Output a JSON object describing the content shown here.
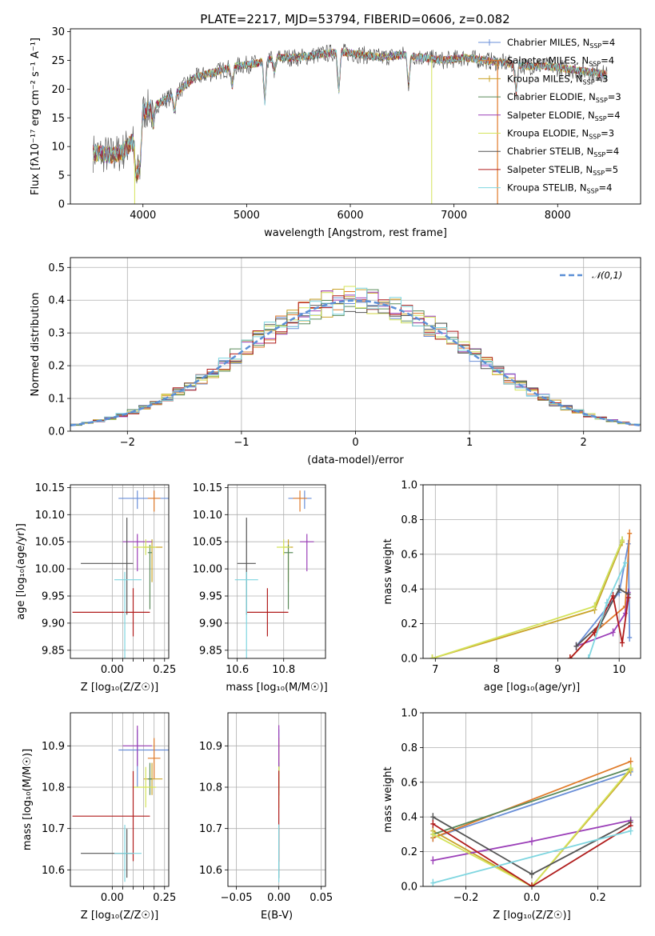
{
  "figure": {
    "title": "PLATE=2217, MJD=53794, FIBERID=0606, z=0.082"
  },
  "colors": {
    "Chabrier MILES": "#6a8fd8",
    "Salpeter MILES": "#e07b2a",
    "Kroupa MILES": "#c9a227",
    "Chabrier ELODIE": "#5a8a5a",
    "Salpeter ELODIE": "#9b3fb8",
    "Kroupa ELODIE": "#d4e35a",
    "Chabrier STELIB": "#555555",
    "Salpeter STELIB": "#b01c1c",
    "Kroupa STELIB": "#7fd6e0",
    "gaussian": "#5b8fd6",
    "grid": "#b0b0b0"
  },
  "chart_data": [
    {
      "id": "spectrum",
      "type": "line",
      "xlabel": "wavelength [Angstrom, rest frame]",
      "ylabel": "Flux [f_λ 10^-17 erg cm^-2 s^-1 A^-1]",
      "xlim": [
        3300,
        8800
      ],
      "ylim": [
        0,
        30.5
      ],
      "xticks": [
        4000,
        5000,
        6000,
        7000,
        8000
      ],
      "yticks": [
        0,
        5,
        10,
        15,
        20,
        25,
        30
      ],
      "grid": false,
      "legend_position": "right",
      "legend": [
        {
          "label": "Chabrier MILES, N",
          "sub": "SSP",
          "tail": "=4"
        },
        {
          "label": "Salpeter MILES, N",
          "sub": "SSP",
          "tail": "=4"
        },
        {
          "label": "Kroupa MILES, N",
          "sub": "SSP",
          "tail": "=3"
        },
        {
          "label": "Chabrier ELODIE, N",
          "sub": "SSP",
          "tail": "=3"
        },
        {
          "label": "Salpeter ELODIE, N",
          "sub": "SSP",
          "tail": "=4"
        },
        {
          "label": "Kroupa ELODIE, N",
          "sub": "SSP",
          "tail": "=3"
        },
        {
          "label": "Chabrier STELIB, N",
          "sub": "SSP",
          "tail": "=4"
        },
        {
          "label": "Salpeter STELIB, N",
          "sub": "SSP",
          "tail": "=5"
        },
        {
          "label": "Kroupa STELIB, N",
          "sub": "SSP",
          "tail": "=4"
        }
      ],
      "continuum": [
        [
          3500,
          9
        ],
        [
          3700,
          8.5
        ],
        [
          3800,
          9
        ],
        [
          3900,
          11
        ],
        [
          3950,
          7
        ],
        [
          4000,
          16
        ],
        [
          4100,
          17
        ],
        [
          4300,
          19
        ],
        [
          4500,
          22
        ],
        [
          4700,
          23
        ],
        [
          4900,
          24
        ],
        [
          5100,
          24.5
        ],
        [
          5300,
          25.5
        ],
        [
          5500,
          25.5
        ],
        [
          5700,
          26
        ],
        [
          5900,
          26.5
        ],
        [
          6100,
          26
        ],
        [
          6300,
          25.5
        ],
        [
          6500,
          26
        ],
        [
          6700,
          25.5
        ],
        [
          6900,
          25
        ],
        [
          7100,
          25.5
        ],
        [
          7300,
          25
        ],
        [
          7500,
          24.5
        ],
        [
          7700,
          24
        ],
        [
          7900,
          24
        ],
        [
          8100,
          23.5
        ],
        [
          8300,
          23
        ],
        [
          8500,
          22.5
        ]
      ]
    },
    {
      "id": "residuals",
      "type": "line",
      "xlabel": "(data-model)/error",
      "ylabel": "Normed distribution",
      "xlim": [
        -2.5,
        2.5
      ],
      "ylim": [
        0,
        0.53
      ],
      "xticks": [
        -2,
        -1,
        0,
        1,
        2
      ],
      "yticks": [
        0.0,
        0.1,
        0.2,
        0.3,
        0.4,
        0.5
      ],
      "grid": true,
      "legend_label": "𝒩(0,1)",
      "legend_position": "top-right"
    },
    {
      "id": "age_vs_Z",
      "type": "scatter",
      "xlabel": "Z [log10(Z/Z⊙)]",
      "ylabel": "age [log10(age/yr)]",
      "xlim": [
        -0.2,
        0.27
      ],
      "ylim": [
        9.835,
        10.155
      ],
      "xticks": [
        0.0,
        0.05,
        0.1,
        0.15,
        0.2,
        0.25
      ],
      "xticklabels": [
        "0.00",
        "",
        "",
        "",
        "",
        "0.25"
      ],
      "yticks": [
        9.85,
        9.9,
        9.95,
        10.0,
        10.05,
        10.1,
        10.15
      ],
      "yticklabels": [
        "9.85",
        "9.90",
        "9.95",
        "10.00",
        "10.05",
        "10.10",
        "10.15"
      ],
      "grid": true
    },
    {
      "id": "age_vs_mass",
      "type": "scatter",
      "xlabel": "mass [log10(M/M⊙)]",
      "ylabel": "",
      "xlim": [
        10.56,
        10.98
      ],
      "ylim": [
        9.835,
        10.155
      ],
      "xticks": [
        10.6,
        10.8
      ],
      "yticks": [
        9.85,
        9.9,
        9.95,
        10.0,
        10.05,
        10.1,
        10.15
      ],
      "yticklabels": [
        "9.85",
        "9.90",
        "9.95",
        "10.00",
        "10.05",
        "10.10",
        "10.15"
      ],
      "grid": true
    },
    {
      "id": "weight_vs_age",
      "type": "line",
      "xlabel": "age [log10(age/yr)]",
      "ylabel": "mass weight",
      "xlim": [
        6.8,
        10.35
      ],
      "ylim": [
        0,
        1.0
      ],
      "xticks": [
        7,
        8,
        9,
        10
      ],
      "yticks": [
        0.0,
        0.2,
        0.4,
        0.6,
        0.8,
        1.0
      ],
      "grid": true
    },
    {
      "id": "mass_vs_Z",
      "type": "scatter",
      "xlabel": "Z [log10(Z/Z⊙)]",
      "ylabel": "mass [log10(M/M⊙)]",
      "xlim": [
        -0.2,
        0.27
      ],
      "ylim": [
        10.56,
        10.98
      ],
      "xticks": [
        0.0,
        0.05,
        0.1,
        0.15,
        0.2,
        0.25
      ],
      "xticklabels": [
        "0.00",
        "",
        "",
        "",
        "",
        "0.25"
      ],
      "yticks": [
        10.6,
        10.7,
        10.8,
        10.9
      ],
      "grid": true
    },
    {
      "id": "mass_vs_ebv",
      "type": "scatter",
      "xlabel": "E(B-V)",
      "ylabel": "",
      "xlim": [
        -0.06,
        0.055
      ],
      "ylim": [
        10.56,
        10.98
      ],
      "xticks": [
        -0.05,
        0.0,
        0.05
      ],
      "xticklabels": [
        "−0.05",
        "0.00",
        "0.05"
      ],
      "yticks": [
        10.6,
        10.7,
        10.8,
        10.9
      ],
      "grid": true
    },
    {
      "id": "weight_vs_Z",
      "type": "line",
      "xlabel": "Z [log10(Z/Z⊙)]",
      "ylabel": "mass weight",
      "xlim": [
        -0.33,
        0.33
      ],
      "ylim": [
        0,
        1.0
      ],
      "xticks": [
        -0.2,
        0.0,
        0.2
      ],
      "xticklabels": [
        "−0.2",
        "0.0",
        "0.2"
      ],
      "yticks": [
        0.0,
        0.2,
        0.4,
        0.6,
        0.8,
        1.0
      ],
      "grid": true
    }
  ],
  "models": [
    {
      "name": "Chabrier MILES",
      "Z": [
        0.12,
        0.09,
        0.3
      ],
      "age": [
        10.13,
        0.005,
        0.0
      ],
      "mass": [
        10.89,
        0.07,
        0.03
      ],
      "ages": [
        9.3,
        10.0,
        10.15,
        10.17
      ],
      "wa": [
        0.07,
        0.38,
        0.66,
        0.12
      ],
      "Zs": [
        -0.3,
        0.3
      ],
      "wz": [
        0.28,
        0.66
      ]
    },
    {
      "name": "Salpeter MILES",
      "Z": [
        0.2,
        0.03,
        0.03
      ],
      "age": [
        10.13,
        0.01,
        0.0
      ],
      "mass": [
        10.87,
        0.03,
        0.03
      ],
      "ages": [
        9.2,
        9.6,
        10.1,
        10.17
      ],
      "wa": [
        0.0,
        0.15,
        0.3,
        0.72
      ],
      "Zs": [
        -0.3,
        0.3
      ],
      "wz": [
        0.28,
        0.72
      ]
    },
    {
      "name": "Kroupa MILES",
      "Z": [
        0.19,
        0.04,
        0.05
      ],
      "age": [
        10.04,
        0.05,
        0.0
      ],
      "mass": [
        10.82,
        0.02,
        0.02
      ],
      "ages": [
        6.95,
        9.6,
        10.05
      ],
      "wa": [
        0.0,
        0.28,
        0.67
      ],
      "Zs": [
        -0.3,
        0.0,
        0.3
      ],
      "wz": [
        0.32,
        0.0,
        0.67
      ]
    },
    {
      "name": "Chabrier ELODIE",
      "Z": [
        0.18,
        0.01,
        0.01
      ],
      "age": [
        10.03,
        0.09,
        0.0
      ],
      "mass": [
        10.82,
        0.02,
        0.02
      ],
      "ages": [
        9.6,
        10.05
      ],
      "wa": [
        0.3,
        0.68
      ],
      "Zs": [
        -0.3,
        0.3
      ],
      "wz": [
        0.3,
        0.68
      ]
    },
    {
      "name": "Salpeter ELODIE",
      "Z": [
        0.12,
        0.07,
        0.07
      ],
      "age": [
        10.05,
        0.04,
        0.0
      ],
      "mass": [
        10.9,
        0.03,
        0.03
      ],
      "ages": [
        9.3,
        9.9,
        10.1,
        10.15
      ],
      "wa": [
        0.07,
        0.15,
        0.26,
        0.38
      ],
      "Zs": [
        -0.3,
        0.0,
        0.3
      ],
      "wz": [
        0.15,
        0.26,
        0.38
      ]
    },
    {
      "name": "Kroupa ELODIE",
      "Z": [
        0.16,
        0.06,
        0.05
      ],
      "age": [
        10.04,
        0.0,
        0.0
      ],
      "mass": [
        10.8,
        0.03,
        0.03
      ],
      "ages": [
        6.95,
        9.6,
        10.05
      ],
      "wa": [
        0.0,
        0.3,
        0.68
      ],
      "Zs": [
        -0.3,
        0.0,
        0.3
      ],
      "wz": [
        0.3,
        0.0,
        0.68
      ]
    },
    {
      "name": "Chabrier STELIB",
      "Z": [
        0.07,
        0.22,
        0.03
      ],
      "age": [
        10.01,
        0.08,
        0.07
      ],
      "mass": [
        10.64,
        0.04,
        0.04
      ],
      "ages": [
        9.3,
        9.7,
        10.0,
        10.15
      ],
      "wa": [
        0.07,
        0.2,
        0.4,
        0.37
      ],
      "Zs": [
        -0.3,
        0.0,
        0.3
      ],
      "wz": [
        0.4,
        0.07,
        0.37
      ]
    },
    {
      "name": "Salpeter STELIB",
      "Z": [
        0.1,
        0.29,
        0.08
      ],
      "age": [
        9.92,
        0.03,
        0.03
      ],
      "mass": [
        10.73,
        0.09,
        0.09
      ],
      "ages": [
        9.2,
        9.6,
        9.9,
        10.05,
        10.15
      ],
      "wa": [
        0.0,
        0.15,
        0.36,
        0.09,
        0.35
      ],
      "Zs": [
        -0.3,
        0.0,
        0.3
      ],
      "wz": [
        0.36,
        0.0,
        0.35
      ]
    },
    {
      "name": "Kroupa STELIB",
      "Z": [
        0.06,
        0.05,
        0.08
      ],
      "age": [
        9.98,
        0.14,
        0.0
      ],
      "mass": [
        10.64,
        0.05,
        0.05
      ],
      "ages": [
        9.5,
        9.8,
        10.1
      ],
      "wa": [
        0.0,
        0.32,
        0.55
      ],
      "Zs": [
        -0.3,
        0.3
      ],
      "wz": [
        0.02,
        0.32
      ]
    }
  ]
}
